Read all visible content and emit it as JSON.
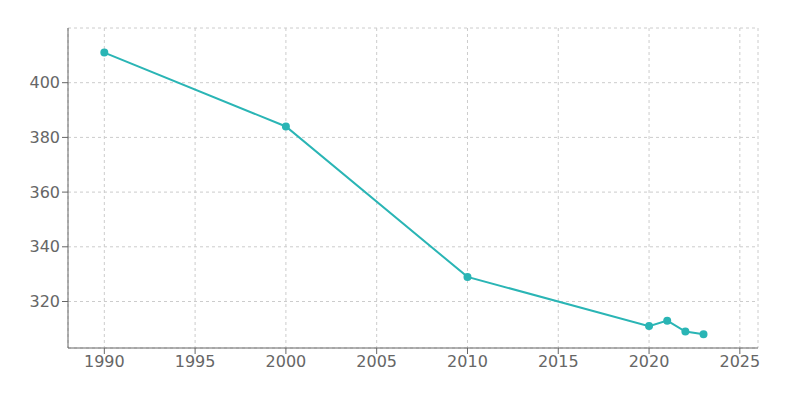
{
  "chart_data": {
    "type": "line",
    "x": [
      1990,
      2000,
      2010,
      2020,
      2021,
      2022,
      2023
    ],
    "values": [
      411,
      384,
      329,
      311,
      313,
      309,
      308
    ],
    "color": "#2ab5b5",
    "marker": "circle",
    "xlim": [
      1988,
      2026
    ],
    "ylim": [
      303,
      420
    ],
    "xticks": [
      1990,
      1995,
      2000,
      2005,
      2010,
      2015,
      2020,
      2025
    ],
    "yticks": [
      320,
      340,
      360,
      380,
      400
    ],
    "grid": true
  }
}
